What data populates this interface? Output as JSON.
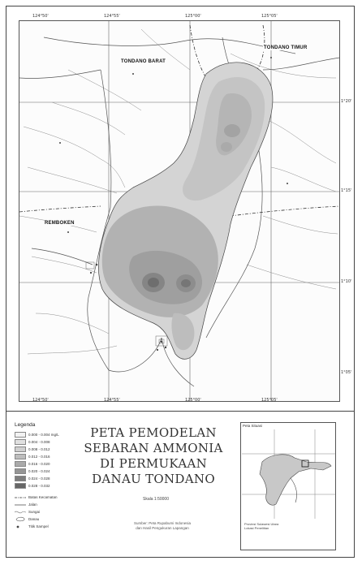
{
  "map": {
    "places": {
      "tondano_barat": "TONDANO BARAT",
      "tondano_timur": "TONDANO TIMUR",
      "remboken": "REMBOKEN"
    },
    "coords_top": [
      "124°50'",
      "124°55'",
      "125°00'",
      "125°05'"
    ],
    "coords_bottom": [
      "124°50'",
      "124°55'",
      "125°00'",
      "125°05'"
    ],
    "coords_right": [
      "1°20'",
      "1°15'",
      "1°10'",
      "1°05'"
    ],
    "colors": {
      "light": "#e2e2e2",
      "mid": "#b8b8b8",
      "dark": "#8a8a8a",
      "darkest": "#5f5f5f",
      "roads": "#888888",
      "rivers": "#9a9a9a"
    }
  },
  "title": {
    "line1": "PETA PEMODELAN",
    "line2": "SEBARAN AMMONIA",
    "line3": "DI PERMUKAAN",
    "line4": "DANAU TONDANO"
  },
  "scale": "Skala 1:50000",
  "credits": {
    "line1": "Sumber: Peta Rupabumi Indonesia",
    "line2": "dan Hasil Pengukuran Lapangan"
  },
  "legend": {
    "title": "Legenda",
    "classes": [
      {
        "label": "0.000 - 0.004 mg/L",
        "color": "#f2f2f2"
      },
      {
        "label": "0.004 - 0.008",
        "color": "#e0e0e0"
      },
      {
        "label": "0.008 - 0.012",
        "color": "#cfcfcf"
      },
      {
        "label": "0.012 - 0.016",
        "color": "#bdbdbd"
      },
      {
        "label": "0.016 - 0.020",
        "color": "#aaaaaa"
      },
      {
        "label": "0.020 - 0.024",
        "color": "#959595"
      },
      {
        "label": "0.024 - 0.028",
        "color": "#7e7e7e"
      },
      {
        "label": "0.028 - 0.032",
        "color": "#666666"
      }
    ],
    "symbols": {
      "boundary": "Batas Kecamatan",
      "road": "Jalan",
      "river": "Sungai",
      "lake": "Danau",
      "sample": "Titik Sampel"
    }
  },
  "inset": {
    "title": "Peta Situasi",
    "note1": "Provinsi Sulawesi Utara",
    "note2": "Lokasi Penelitian"
  }
}
